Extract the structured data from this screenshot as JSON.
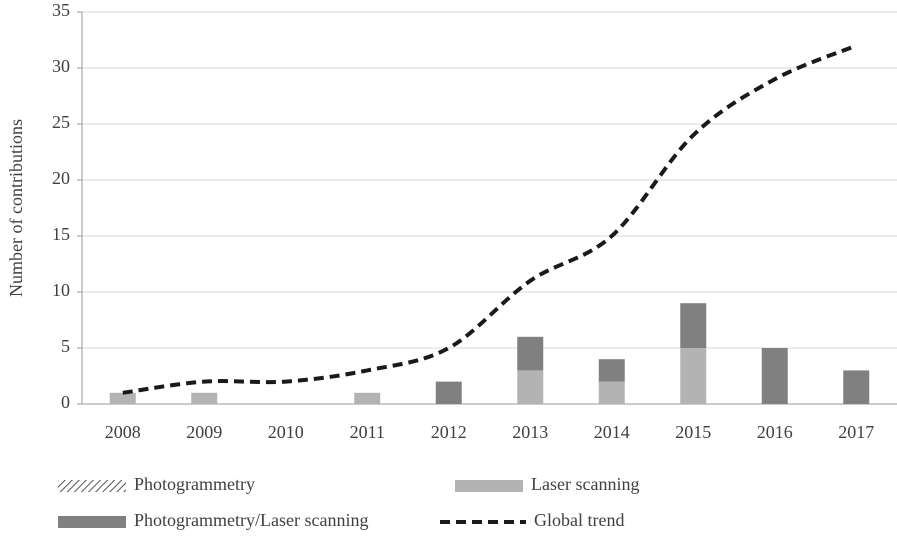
{
  "chart_data": {
    "type": "bar",
    "stacked": true,
    "smooth": true,
    "grid": true,
    "y_label": "Number of contributions",
    "categories": [
      "2008",
      "2009",
      "2010",
      "2011",
      "2012",
      "2013",
      "2014",
      "2015",
      "2016",
      "2017"
    ],
    "ylim": [
      0,
      35
    ],
    "yticks": [
      0,
      5,
      10,
      15,
      20,
      25,
      30,
      35
    ],
    "legend": "bottom",
    "series": [
      {
        "name": "Photogrammetry",
        "type": "bar",
        "color": "#555555",
        "hatch": true,
        "values": [
          0,
          0,
          0,
          0,
          0,
          0,
          0,
          0,
          0,
          0
        ]
      },
      {
        "name": "Laser scanning",
        "type": "bar",
        "color": "#b3b3b3",
        "values": [
          1,
          1,
          0,
          1,
          0,
          3,
          2,
          5,
          0,
          0
        ]
      },
      {
        "name": "Photogrammetry/Laser scanning",
        "type": "bar",
        "color": "#808080",
        "values": [
          0,
          0,
          0,
          0,
          2,
          3,
          2,
          4,
          5,
          3
        ]
      },
      {
        "name": "Global trend",
        "type": "line",
        "color": "#1a1a1a",
        "dashed": true,
        "values": [
          1,
          2,
          2,
          3,
          5,
          11,
          15,
          24,
          29,
          32
        ]
      }
    ]
  }
}
